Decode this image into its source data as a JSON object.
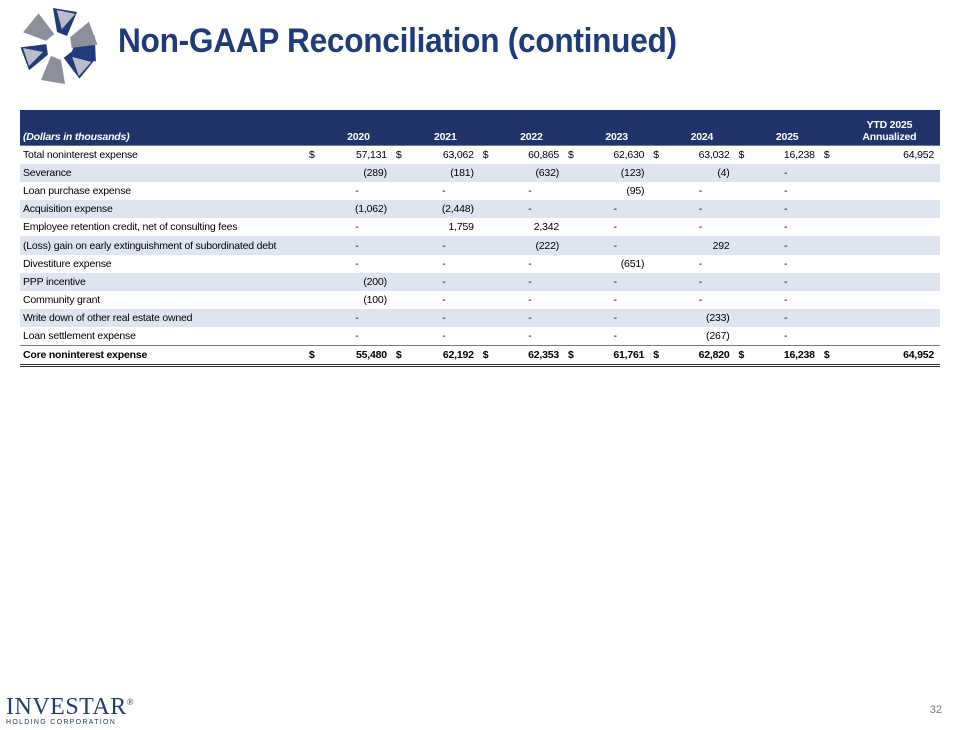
{
  "slide": {
    "title": "Non-GAAP Reconciliation (continued)",
    "page_number": "32"
  },
  "brand": {
    "name": "Investar",
    "registered_mark": "®",
    "subtitle": "HOLDING CORPORATION"
  },
  "colors": {
    "title": "#1f3b7a",
    "header_bg": "#1f3468",
    "alt_row": "#dfe4f1"
  },
  "table": {
    "header": {
      "label": "(Dollars in thousands)",
      "columns": [
        "2020",
        "2021",
        "2022",
        "2023",
        "2024",
        "2025"
      ],
      "ytd_line1": "YTD 2025",
      "ytd_line2": "Annualized"
    },
    "rows": [
      {
        "label": "Total noninterest expense",
        "c2020": "57,131",
        "c2021": "63,062",
        "c2022": "60,865",
        "c2023": "62,630",
        "c2024": "63,032",
        "c2025": "16,238",
        "ytd": "64,952",
        "currency": "$"
      },
      {
        "label": "Severance",
        "c2020": "(289)",
        "c2021": "(181)",
        "c2022": "(632)",
        "c2023": "(123)",
        "c2024": "(4)",
        "c2025": "-",
        "ytd": ""
      },
      {
        "label": "Loan purchase expense",
        "c2020": "-",
        "c2021": "-",
        "c2022": "-",
        "c2023": "(95)",
        "c2024": "-",
        "c2025": "-",
        "ytd": ""
      },
      {
        "label": "Acquisition expense",
        "c2020": "(1,062)",
        "c2021": "(2,448)",
        "c2022": "-",
        "c2023": "-",
        "c2024": "-",
        "c2025": "-",
        "ytd": ""
      },
      {
        "label": "Employee retention credit, net of consulting fees",
        "c2020": "-",
        "c2021": "1,759",
        "c2022": "2,342",
        "c2023": "-",
        "c2024": "-",
        "c2025": "-",
        "ytd": ""
      },
      {
        "label": "(Loss) gain on early extinguishment of subordinated debt",
        "c2020": "-",
        "c2021": "-",
        "c2022": "(222)",
        "c2023": "-",
        "c2024": "292",
        "c2025": "-",
        "ytd": ""
      },
      {
        "label": "Divestiture expense",
        "c2020": "-",
        "c2021": "-",
        "c2022": "-",
        "c2023": "(651)",
        "c2024": "-",
        "c2025": "-",
        "ytd": ""
      },
      {
        "label": "PPP incentive",
        "c2020": "(200)",
        "c2021": "-",
        "c2022": "-",
        "c2023": "-",
        "c2024": "-",
        "c2025": "-",
        "ytd": ""
      },
      {
        "label": "Community grant",
        "c2020": "(100)",
        "c2021": "-",
        "c2022": "-",
        "c2023": "-",
        "c2024": "-",
        "c2025": "-",
        "ytd": ""
      },
      {
        "label": "Write down of other real estate owned",
        "c2020": "-",
        "c2021": "-",
        "c2022": "-",
        "c2023": "-",
        "c2024": "(233)",
        "c2025": "-",
        "ytd": ""
      },
      {
        "label": "Loan settlement expense",
        "c2020": "-",
        "c2021": "-",
        "c2022": "-",
        "c2023": "-",
        "c2024": "(267)",
        "c2025": "-",
        "ytd": ""
      }
    ],
    "total": {
      "label": "Core noninterest expense",
      "currency": "$",
      "c2020": "55,480",
      "c2021": "62,192",
      "c2022": "62,353",
      "c2023": "61,761",
      "c2024": "62,820",
      "c2025": "16,238",
      "ytd": "64,952"
    }
  }
}
